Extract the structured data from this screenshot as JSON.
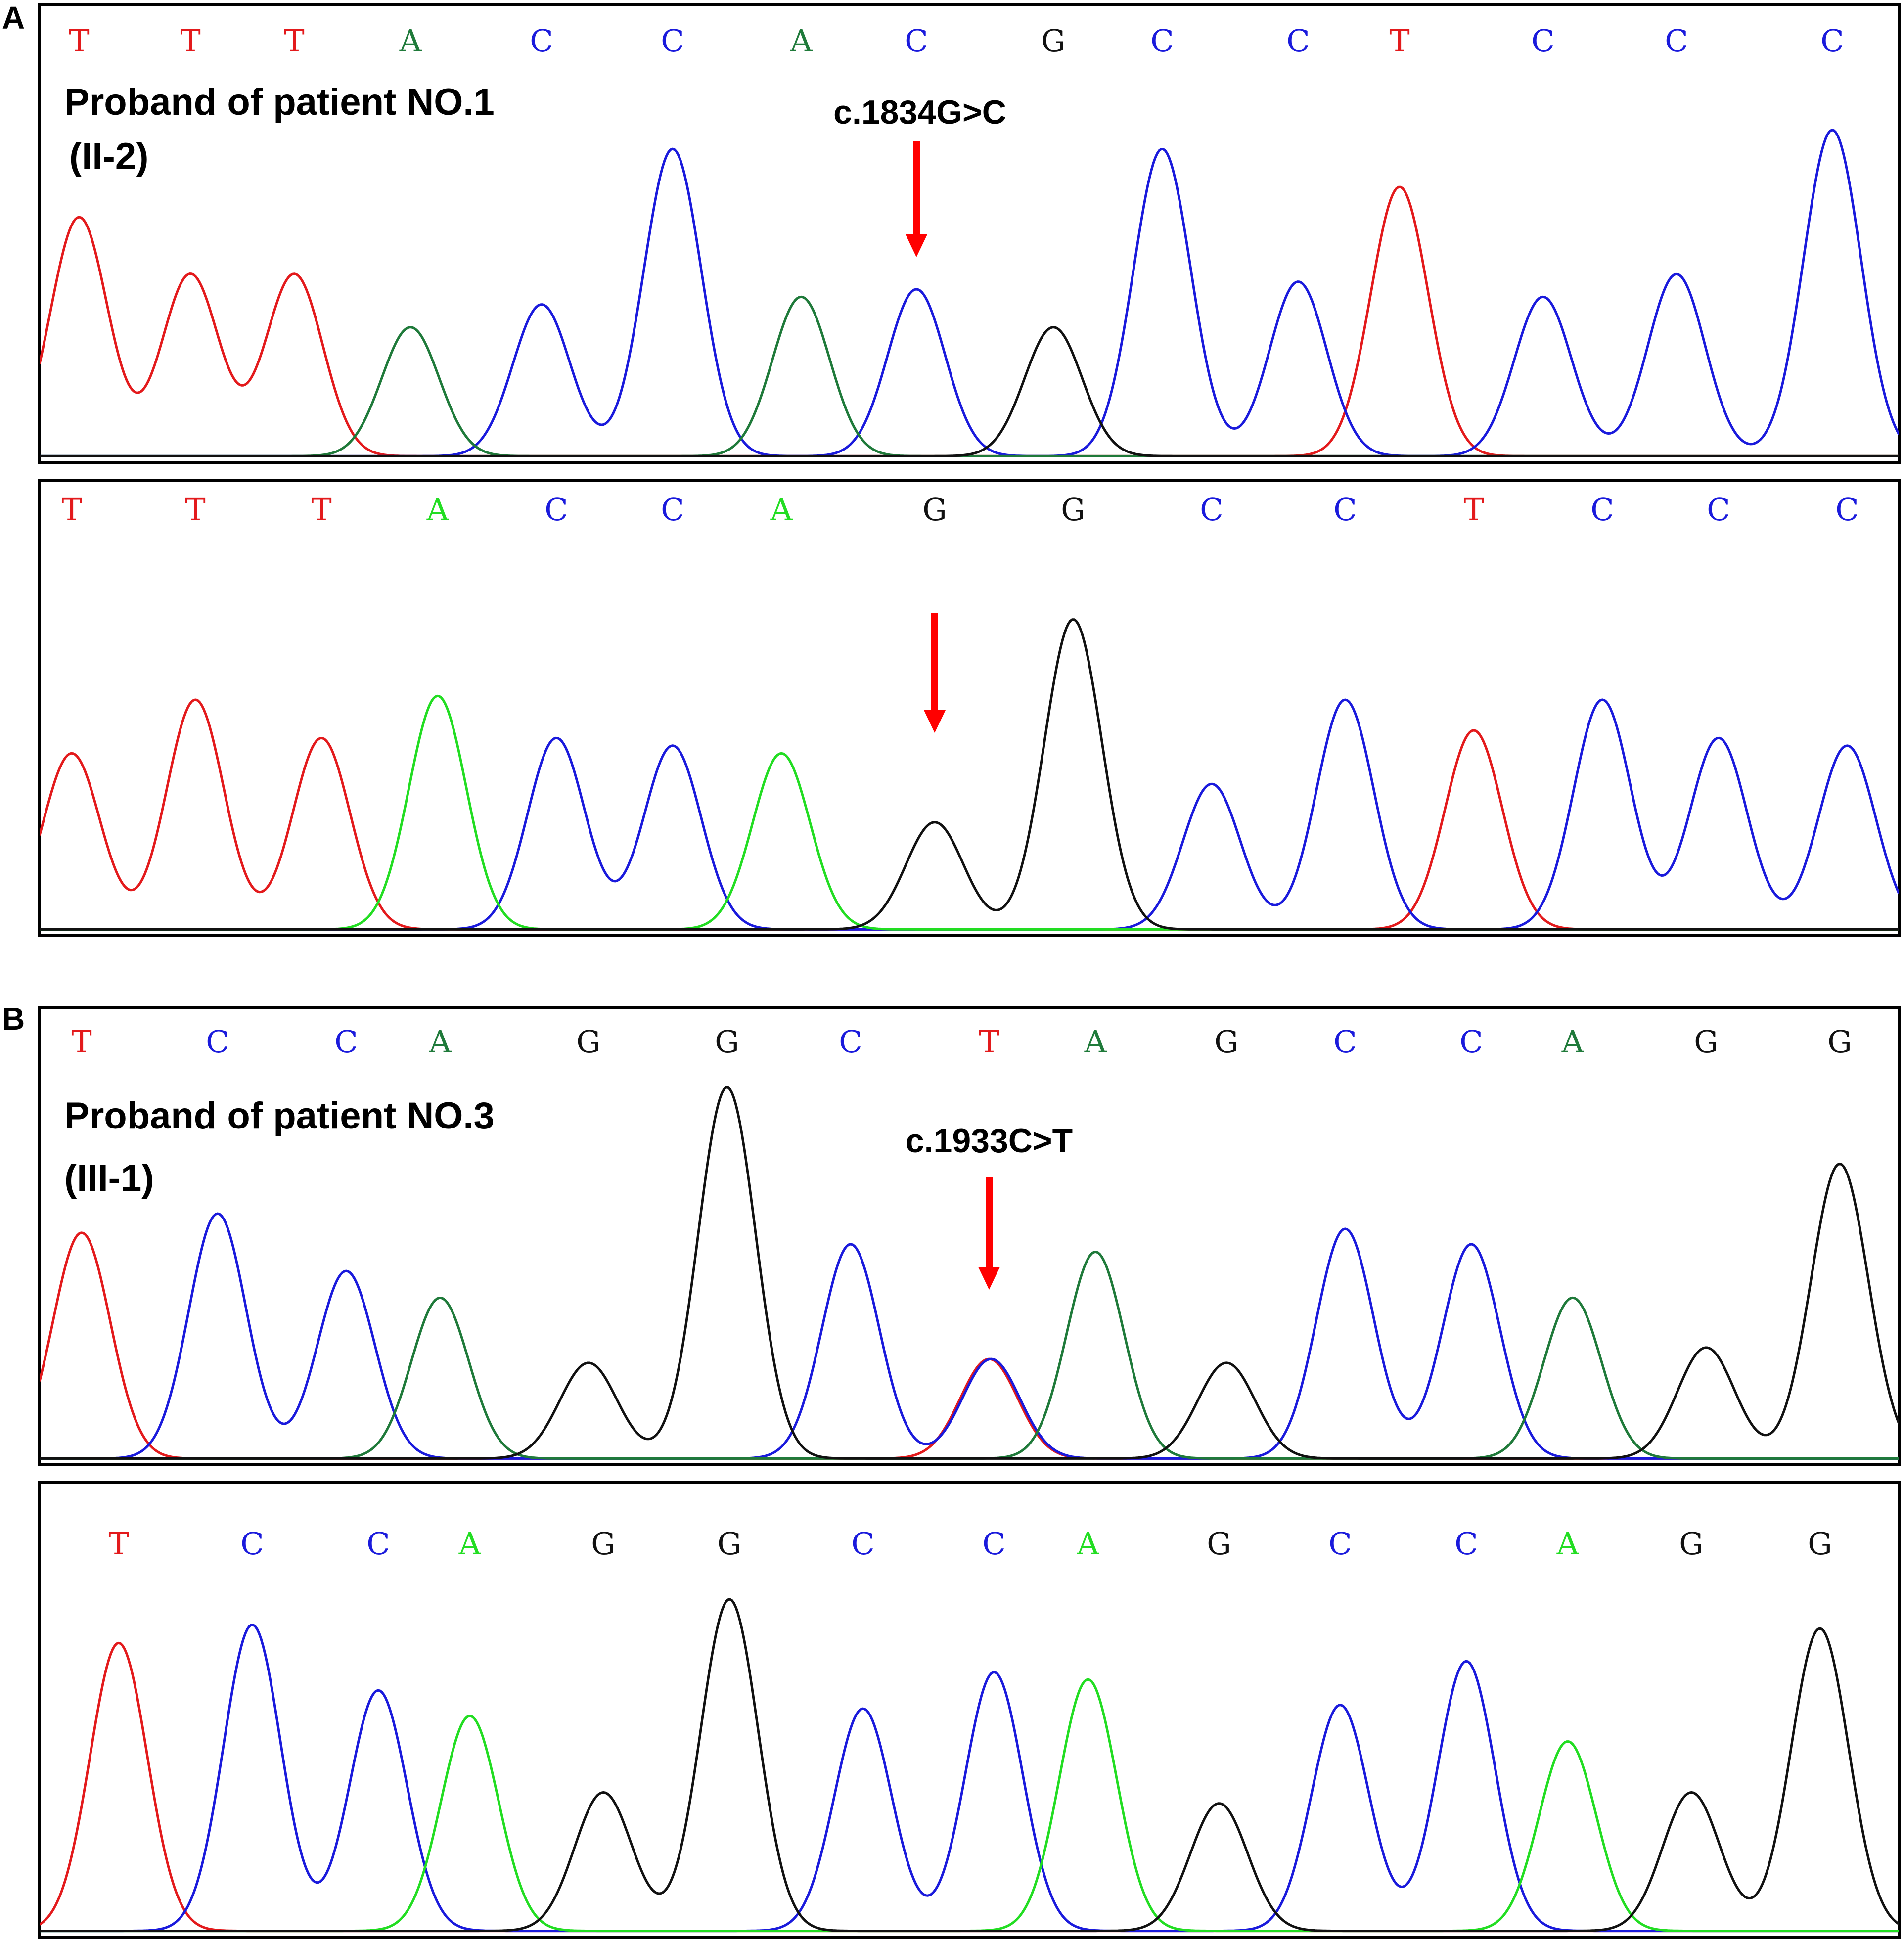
{
  "figure": {
    "panel_labels": [
      "A",
      "B"
    ]
  },
  "colors": {
    "T": "#e31a1c",
    "C": "#1a1adc",
    "G": "#111111",
    "A_dark": "#1f7a3a",
    "A_light": "#22dd22",
    "arrow": "#ff0000"
  },
  "chart_data": [
    {
      "type": "line",
      "panel": "A",
      "title": "Proband of patient NO.1",
      "subtitle": "(II-2)",
      "mutation_label": "c.1834G>C",
      "arrow_index": 7,
      "a_color": "dark",
      "bases": [
        "T",
        "T",
        "T",
        "A",
        "C",
        "C",
        "A",
        "C",
        "G",
        "C",
        "C",
        "T",
        "C",
        "C",
        "C"
      ],
      "peak_heights": [
        0.63,
        0.48,
        0.48,
        0.34,
        0.4,
        0.81,
        0.42,
        0.44,
        0.34,
        0.81,
        0.46,
        0.71,
        0.42,
        0.48,
        0.86
      ],
      "overlaps": []
    },
    {
      "type": "line",
      "panel": "A",
      "title": "",
      "mutation_label": "",
      "arrow_index": 7,
      "a_color": "light",
      "bases": [
        "T",
        "T",
        "T",
        "A",
        "C",
        "C",
        "A",
        "G",
        "G",
        "C",
        "C",
        "T",
        "C",
        "C",
        "C"
      ],
      "peak_heights": [
        0.46,
        0.6,
        0.5,
        0.61,
        0.5,
        0.48,
        0.46,
        0.28,
        0.81,
        0.38,
        0.6,
        0.52,
        0.6,
        0.5,
        0.48
      ],
      "overlaps": []
    },
    {
      "type": "line",
      "panel": "B",
      "title": "Proband of patient NO.3",
      "subtitle": "(III-1)",
      "mutation_label": "c.1933C>T",
      "arrow_index": 7,
      "a_color": "dark",
      "bases": [
        "T",
        "C",
        "C",
        "A",
        "G",
        "G",
        "C",
        "T",
        "A",
        "G",
        "C",
        "C",
        "A",
        "G",
        "G"
      ],
      "peak_heights": [
        0.59,
        0.64,
        0.49,
        0.42,
        0.25,
        0.97,
        0.56,
        0.26,
        0.54,
        0.25,
        0.6,
        0.56,
        0.42,
        0.29,
        0.77
      ],
      "overlaps": [
        {
          "index": 7,
          "base": "C",
          "height": 0.26
        }
      ]
    },
    {
      "type": "line",
      "panel": "B",
      "title": "",
      "mutation_label": "",
      "arrow_index": null,
      "a_color": "light",
      "bases": [
        "T",
        "C",
        "C",
        "A",
        "G",
        "G",
        "C",
        "C",
        "A",
        "G",
        "C",
        "C",
        "A",
        "G",
        "G"
      ],
      "peak_heights": [
        0.79,
        0.84,
        0.66,
        0.52,
        0.38,
        0.91,
        0.61,
        0.71,
        0.69,
        0.35,
        0.62,
        0.74,
        0.52,
        0.38,
        0.83
      ],
      "overlaps": [
        {
          "index": 3,
          "base": "A",
          "height": 0.07
        }
      ]
    }
  ]
}
